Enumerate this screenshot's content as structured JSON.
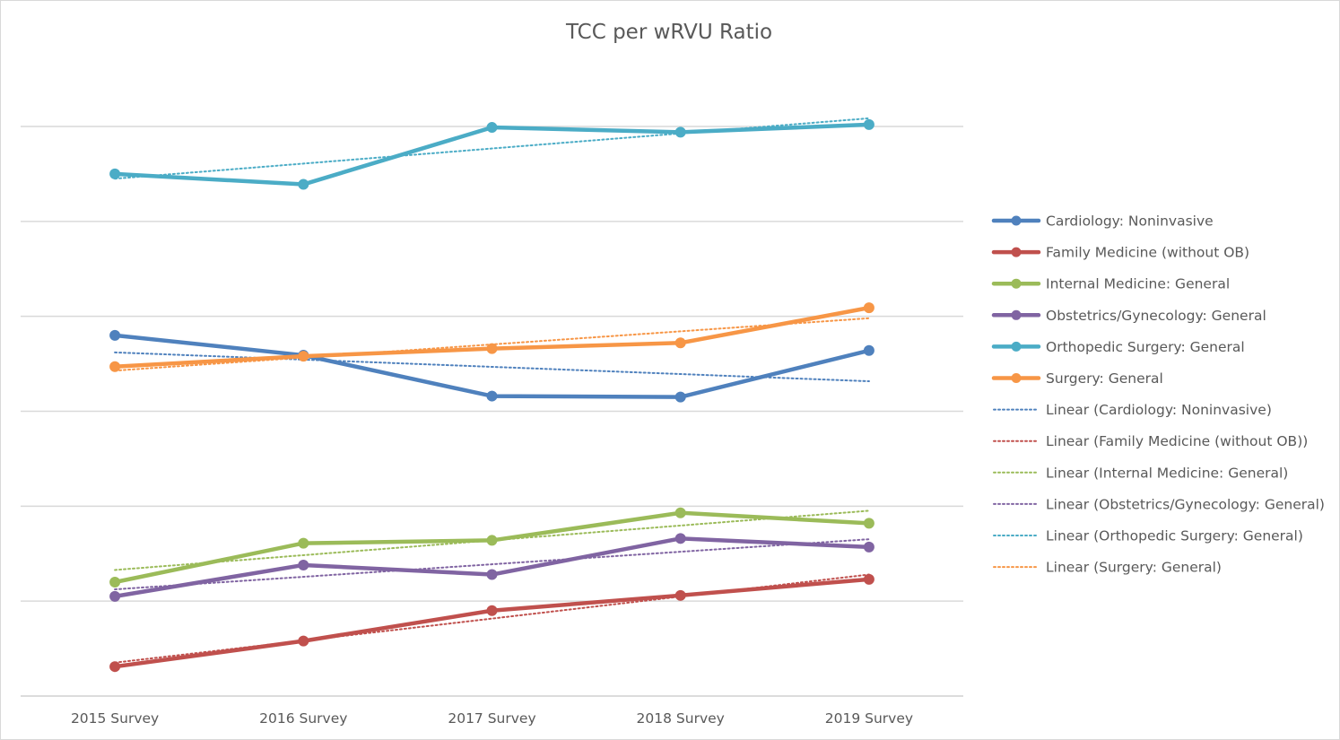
{
  "chart_data": {
    "type": "line",
    "title": "TCC per wRVU Ratio",
    "xlabel": "",
    "ylabel": "",
    "categories": [
      "2015 Survey",
      "2016 Survey",
      "2017 Survey",
      "2018 Survey",
      "2019 Survey"
    ],
    "ylim": [
      0,
      6
    ],
    "y_tick_labels_shown": false,
    "grid": true,
    "legend_position": "right",
    "series": [
      {
        "name": "Cardiology: Noninvasive",
        "color": "#4f81bd",
        "values": [
          3.8,
          3.59,
          3.16,
          3.15,
          3.64
        ]
      },
      {
        "name": "Family Medicine (without OB)",
        "color": "#c0504d",
        "values": [
          0.31,
          0.58,
          0.9,
          1.06,
          1.23
        ]
      },
      {
        "name": "Internal Medicine: General",
        "color": "#9bbb59",
        "values": [
          1.2,
          1.61,
          1.64,
          1.93,
          1.82
        ]
      },
      {
        "name": "Obstetrics/Gynecology: General",
        "color": "#8064a2",
        "values": [
          1.05,
          1.38,
          1.28,
          1.66,
          1.57
        ]
      },
      {
        "name": "Orthopedic Surgery: General",
        "color": "#4bacc6",
        "values": [
          5.5,
          5.39,
          5.99,
          5.94,
          6.02
        ]
      },
      {
        "name": "Surgery: General",
        "color": "#f79646",
        "values": [
          3.47,
          3.58,
          3.66,
          3.72,
          4.09
        ]
      }
    ],
    "trendline_legend": [
      "Linear (Cardiology: Noninvasive)",
      "Linear (Family Medicine (without OB))",
      "Linear (Internal Medicine: General)",
      "Linear (Obstetrics/Gynecology: General)",
      "Linear (Orthopedic Surgery: General)",
      "Linear (Surgery: General)"
    ]
  }
}
